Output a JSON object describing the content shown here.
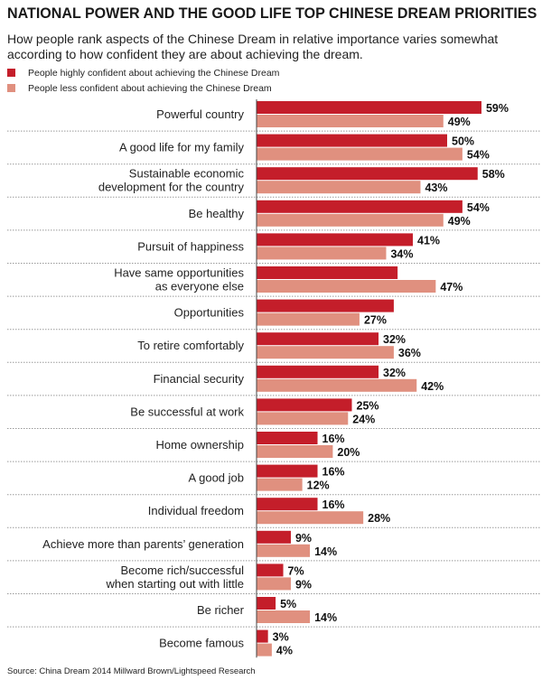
{
  "chart_data": {
    "type": "bar",
    "orientation": "horizontal",
    "title": "NATIONAL POWER AND THE GOOD LIFE TOP CHINESE DREAM PRIORITIES",
    "subtitle": "How people rank aspects of the Chinese Dream in relative importance varies somewhat according to how confident they are about achieving the dream.",
    "source": "Source: China Dream 2014 Millward Brown/Lightspeed Research",
    "unit": "%",
    "xlim": [
      0,
      65
    ],
    "grid": false,
    "legend_position": "top-left",
    "categories": [
      [
        "Powerful country"
      ],
      [
        "A good life for my family"
      ],
      [
        "Sustainable economic",
        "development for the country"
      ],
      [
        "Be healthy"
      ],
      [
        "Pursuit of happiness"
      ],
      [
        "Have same opportunities",
        "as everyone else"
      ],
      [
        "Opportunities"
      ],
      [
        "To retire comfortably"
      ],
      [
        "Financial security"
      ],
      [
        "Be successful at work"
      ],
      [
        "Home ownership"
      ],
      [
        "A good job"
      ],
      [
        "Individual freedom"
      ],
      [
        "Achieve more than parents’ generation"
      ],
      [
        "Become rich/successful",
        "when starting out with little"
      ],
      [
        "Be richer"
      ],
      [
        "Become famous"
      ]
    ],
    "series": [
      {
        "name": "People highly confident about achieving the Chinese Dream",
        "color": "#c41e2a",
        "values": [
          59,
          50,
          58,
          54,
          41,
          37,
          36,
          32,
          32,
          25,
          16,
          16,
          16,
          9,
          7,
          5,
          3
        ],
        "labels": [
          "59%",
          "50%",
          "58%",
          "54%",
          "41%",
          null,
          null,
          "32%",
          "32%",
          "25%",
          "16%",
          "16%",
          "16%",
          "9%",
          "7%",
          "5%",
          "3%"
        ]
      },
      {
        "name": "People less confident about achieving the Chinese Dream",
        "color": "#e0907f",
        "values": [
          49,
          54,
          43,
          49,
          34,
          47,
          27,
          36,
          42,
          24,
          20,
          12,
          28,
          14,
          9,
          14,
          4
        ],
        "labels": [
          "49%",
          "54%",
          "43%",
          "49%",
          "34%",
          "47%",
          "27%",
          "36%",
          "42%",
          "24%",
          "20%",
          "12%",
          "28%",
          "14%",
          "9%",
          "14%",
          "4%"
        ]
      }
    ]
  }
}
